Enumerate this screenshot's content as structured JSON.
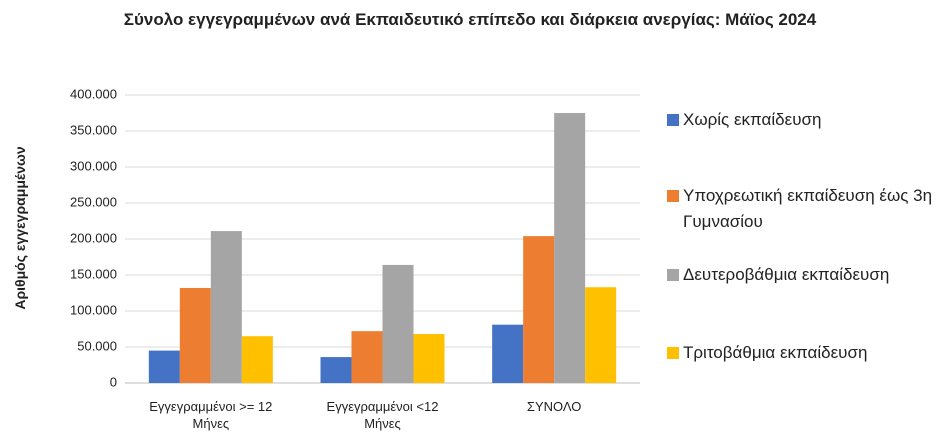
{
  "chart_data": {
    "type": "bar",
    "title": "Σύνολο εγγεγραμμένων  ανά Εκπαιδευτικό επίπεδο και διάρκεια ανεργίας: Μάϊος  2024",
    "y_label": "Αριθμός εγγεγραμμένων",
    "categories": [
      "Εγγεγραμμένοι  >= 12 Μήνες",
      "Εγγεγραμμένοι  <12 Μήνες",
      "ΣΥΝΟΛΟ"
    ],
    "series": [
      {
        "name": "Χωρίς εκπαίδευση",
        "color": "#4472c4",
        "values": [
          45000,
          36000,
          81000
        ]
      },
      {
        "name": "Υποχρεωτική εκπαίδευση έως 3η Γυμνασίου",
        "color": "#ed7d31",
        "values": [
          132000,
          72000,
          204000
        ]
      },
      {
        "name": "Δευτεροβάθμια εκπαίδευση",
        "color": "#a5a5a5",
        "values": [
          211000,
          164000,
          375000
        ]
      },
      {
        "name": "Τριτοβάθμια εκπαίδευση",
        "color": "#ffc000",
        "values": [
          65000,
          68000,
          133000
        ]
      }
    ],
    "ylim": [
      0,
      400000
    ],
    "yticks": [
      0,
      {
        "value": 50000,
        "label": "50.000"
      },
      {
        "value": 100000,
        "label": "100.000"
      },
      {
        "value": 150000,
        "label": "150.000"
      },
      {
        "value": 200000,
        "label": "200.000"
      },
      {
        "value": 250000,
        "label": "250.000"
      },
      {
        "value": 300000,
        "label": "300.000"
      },
      {
        "value": 350000,
        "label": "350.000"
      },
      {
        "value": 400000,
        "label": "400.000"
      }
    ],
    "grid": true,
    "legend": "right"
  }
}
